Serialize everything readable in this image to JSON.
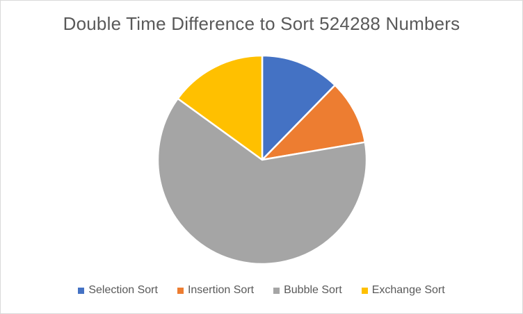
{
  "chart_data": {
    "type": "pie",
    "title": "Double Time Difference to Sort 524288 Numbers",
    "categories": [
      "Selection Sort",
      "Insertion Sort",
      "Bubble Sort",
      "Exchange Sort"
    ],
    "values": [
      12.3,
      10.0,
      62.7,
      15.0
    ],
    "colors": [
      "#4472C4",
      "#ED7D31",
      "#A5A5A5",
      "#FFC000"
    ],
    "legend_position": "bottom",
    "start_angle": "top",
    "direction": "clockwise"
  }
}
